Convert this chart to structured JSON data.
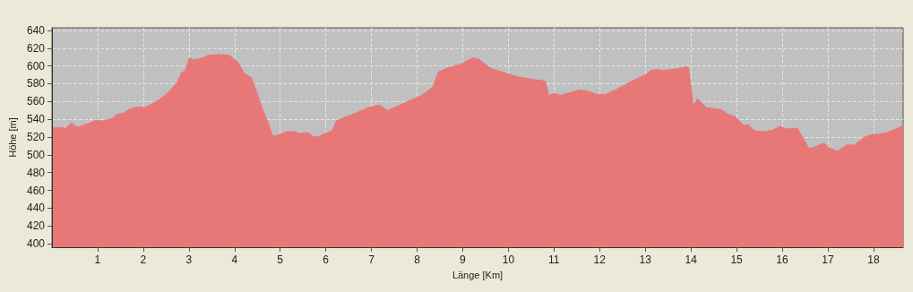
{
  "chart_data": {
    "type": "area",
    "xlabel": "Länge [Km]",
    "ylabel": "Höhe [m]",
    "x": [
      0.02,
      0.22,
      0.29,
      0.42,
      0.55,
      0.68,
      0.78,
      0.97,
      1.1,
      1.33,
      1.4,
      1.56,
      1.73,
      1.89,
      2.02,
      2.22,
      2.35,
      2.54,
      2.74,
      2.84,
      2.92,
      3.01,
      3.1,
      3.23,
      3.43,
      3.66,
      3.88,
      3.98,
      4.08,
      4.21,
      4.37,
      4.47,
      4.6,
      4.73,
      4.84,
      4.93,
      5.16,
      5.32,
      5.42,
      5.61,
      5.71,
      5.84,
      5.97,
      6.14,
      6.23,
      6.4,
      6.66,
      6.92,
      7.18,
      7.35,
      7.58,
      7.84,
      8.1,
      8.36,
      8.46,
      8.62,
      8.95,
      9.21,
      9.34,
      9.63,
      9.93,
      10.19,
      10.51,
      10.81,
      10.88,
      11.01,
      11.14,
      11.56,
      11.72,
      11.95,
      12.12,
      12.35,
      12.67,
      13.0,
      13.13,
      13.23,
      13.36,
      13.59,
      13.91,
      13.95,
      14.05,
      14.14,
      14.34,
      14.5,
      14.67,
      14.8,
      14.96,
      15.16,
      15.25,
      15.39,
      15.62,
      15.81,
      15.94,
      16.11,
      16.33,
      16.59,
      16.76,
      16.92,
      17.02,
      17.22,
      17.41,
      17.58,
      17.81,
      17.97,
      18.1,
      18.3,
      18.49,
      18.65
    ],
    "series": [
      {
        "color": "#e87878",
        "values": [
          530,
          531,
          529,
          536,
          531,
          533,
          535,
          539,
          538,
          541,
          545,
          547,
          552,
          554,
          553,
          558,
          562,
          570,
          581,
          593,
          594,
          609,
          607,
          608,
          612,
          613,
          612,
          608,
          604,
          592,
          587,
          573,
          553,
          537,
          521,
          522,
          526,
          526,
          524,
          525,
          521,
          520,
          524,
          527,
          538,
          542,
          547,
          553,
          556,
          550,
          555,
          561,
          567,
          577,
          593,
          597,
          602,
          609,
          608,
          597,
          592,
          588,
          585,
          583,
          567,
          569,
          567,
          573,
          572,
          568,
          568,
          573,
          582,
          590,
          595,
          596,
          595,
          596,
          599,
          598,
          555,
          563,
          553,
          552,
          551,
          546,
          543,
          533,
          534,
          527,
          526,
          528,
          532,
          529,
          530,
          507,
          510,
          513,
          508,
          504,
          511,
          511,
          520,
          523,
          523,
          525,
          529,
          533
        ]
      }
    ],
    "xlim": [
      0,
      18.65
    ],
    "ylim": [
      396,
      643
    ],
    "xticks": [
      1,
      2,
      3,
      4,
      5,
      6,
      7,
      8,
      9,
      10,
      11,
      12,
      13,
      14,
      15,
      16,
      17,
      18
    ],
    "yticks": [
      400,
      420,
      440,
      460,
      480,
      500,
      520,
      540,
      560,
      580,
      600,
      620,
      640
    ],
    "grid": true,
    "marker": "none",
    "line_style": "solid"
  }
}
